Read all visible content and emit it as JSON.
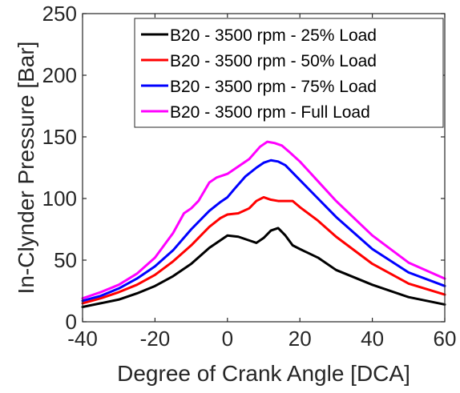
{
  "chart_data": {
    "type": "line",
    "title": "",
    "xlabel": "Degree of Crank Angle [DCA]",
    "ylabel": "In-Clynder Pressure [Bar]",
    "xlim": [
      -40,
      60
    ],
    "ylim": [
      0,
      250
    ],
    "xticks": [
      -40,
      -20,
      0,
      20,
      40,
      60
    ],
    "yticks": [
      0,
      50,
      100,
      150,
      200,
      250
    ],
    "grid": false,
    "legend_position": "top-right",
    "series": [
      {
        "name": "B20 - 3500 rpm - 25% Load",
        "color": "#000000",
        "x": [
          -40,
          -35,
          -30,
          -25,
          -20,
          -15,
          -10,
          -5,
          0,
          3,
          6,
          8,
          10,
          12,
          14,
          16,
          18,
          20,
          25,
          30,
          40,
          50,
          60
        ],
        "y": [
          12,
          15,
          18,
          23,
          29,
          37,
          47,
          60,
          70,
          69,
          66,
          64,
          68,
          74,
          76,
          70,
          62,
          59,
          52,
          42,
          30,
          20,
          14
        ]
      },
      {
        "name": "B20 - 3500 rpm - 50% Load",
        "color": "#ff0000",
        "x": [
          -40,
          -35,
          -30,
          -25,
          -20,
          -15,
          -10,
          -5,
          -2,
          0,
          3,
          6,
          8,
          10,
          12,
          14,
          16,
          18,
          20,
          25,
          30,
          40,
          50,
          60
        ],
        "y": [
          15,
          19,
          24,
          30,
          38,
          49,
          62,
          77,
          84,
          87,
          88,
          92,
          98,
          101,
          99,
          98,
          98,
          98,
          93,
          82,
          69,
          47,
          31,
          22
        ]
      },
      {
        "name": "B20 - 3500 rpm - 75% Load",
        "color": "#0000ff",
        "x": [
          -40,
          -35,
          -30,
          -25,
          -20,
          -15,
          -10,
          -5,
          -2,
          0,
          2,
          5,
          8,
          10,
          12,
          14,
          16,
          18,
          20,
          25,
          30,
          40,
          50,
          60
        ],
        "y": [
          17,
          21,
          27,
          35,
          45,
          58,
          75,
          90,
          97,
          101,
          108,
          118,
          125,
          129,
          131,
          130,
          127,
          121,
          115,
          100,
          85,
          59,
          40,
          29
        ]
      },
      {
        "name": "B20 - 3500 rpm - Full Load",
        "color": "#ff00ff",
        "x": [
          -40,
          -35,
          -30,
          -25,
          -20,
          -15,
          -12,
          -10,
          -8,
          -5,
          -3,
          0,
          3,
          6,
          9,
          11,
          13,
          15,
          17,
          20,
          25,
          30,
          40,
          50,
          60
        ],
        "y": [
          19,
          24,
          30,
          39,
          52,
          72,
          88,
          92,
          98,
          113,
          117,
          120,
          126,
          132,
          142,
          146,
          145,
          143,
          138,
          130,
          114,
          98,
          70,
          48,
          35
        ]
      }
    ]
  }
}
